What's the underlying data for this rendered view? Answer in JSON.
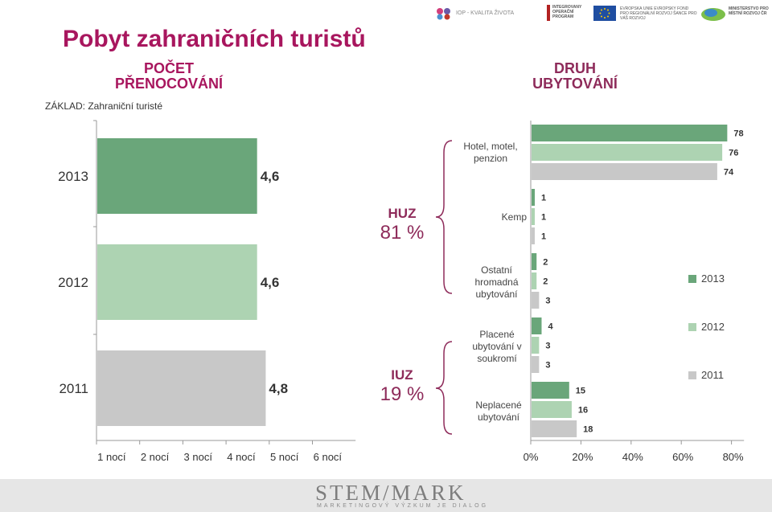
{
  "header": {
    "title": "Pobyt zahraničních turistů",
    "subtitle_left": "POČET PŘENOCOVÁNÍ",
    "subtitle_right": "DRUH UBYTOVÁNÍ",
    "basis": "ZÁKLAD: Zahraniční turisté"
  },
  "logos": {
    "iop": "IOP - KVALITA ŽIVOTA",
    "iop_program": "INTEGROVANÝ OPERAČNÍ PROGRAM",
    "eu": "EVROPSKÁ UNIE EVROPSKÝ FOND PRO REGIONÁLNÍ ROZVOJ ŠANCE PRO VÁŠ ROZVOJ",
    "ministry": "MINISTERSTVO PRO MÍSTNÍ ROZVOJ ČR",
    "stem_mark": "STEM/MARK",
    "stem_mark_sub": "MARKETINGOVÝ VÝZKUM JE DIALOG"
  },
  "segments": [
    {
      "name": "HUZ",
      "pct": "81 %"
    },
    {
      "name": "IUZ",
      "pct": "19 %"
    }
  ],
  "colors": {
    "2013": "#6aa67a",
    "2012": "#add3b2",
    "2011": "#c8c8c8",
    "accent": "#a8165e"
  },
  "chart_data": [
    {
      "type": "bar",
      "orientation": "horizontal",
      "categories": [
        "2013",
        "2012",
        "2011"
      ],
      "values": [
        4.6,
        4.6,
        4.8
      ],
      "value_labels": [
        "4,6",
        "4,6",
        "4,8"
      ],
      "x_ticks": [
        "1 nocí",
        "2 nocí",
        "3 nocí",
        "4 nocí",
        "5 nocí",
        "6 nocí"
      ],
      "xlim": [
        0,
        6
      ]
    },
    {
      "type": "bar",
      "orientation": "horizontal",
      "categories": [
        "Hotel, motel, penzion",
        "Kemp",
        "Ostatní hromadná ubytování",
        "Placené ubytování v soukromí",
        "Neplacené ubytování"
      ],
      "series": [
        {
          "name": "2013",
          "values": [
            78,
            1,
            2,
            4,
            15
          ]
        },
        {
          "name": "2012",
          "values": [
            76,
            1,
            2,
            3,
            16
          ]
        },
        {
          "name": "2011",
          "values": [
            74,
            1,
            3,
            3,
            18
          ]
        }
      ],
      "x_ticks": [
        "0%",
        "20%",
        "40%",
        "60%",
        "80%"
      ],
      "xlim": [
        0,
        85
      ],
      "legend": "right"
    }
  ]
}
